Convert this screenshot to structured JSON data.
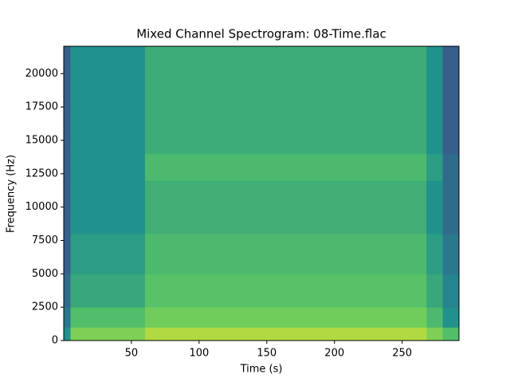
{
  "chart_data": {
    "type": "spectrogram",
    "title": "Mixed Channel Spectrogram: 08-Time.flac",
    "xlabel": "Time (s)",
    "ylabel": "Frequency (Hz)",
    "colormap": "viridis",
    "x_edges": [
      0,
      5,
      60,
      268,
      280,
      292
    ],
    "y_edges": [
      0,
      1000,
      2500,
      5000,
      8000,
      12000,
      14000,
      22050
    ],
    "values": [
      [
        0.5,
        0.4,
        0.35,
        0.3,
        0.3,
        0.3,
        0.3
      ],
      [
        0.8,
        0.7,
        0.6,
        0.55,
        0.5,
        0.5,
        0.5
      ],
      [
        0.88,
        0.78,
        0.72,
        0.68,
        0.63,
        0.68,
        0.62
      ],
      [
        0.8,
        0.68,
        0.6,
        0.55,
        0.5,
        0.55,
        0.5
      ],
      [
        0.7,
        0.5,
        0.45,
        0.4,
        0.35,
        0.35,
        0.3
      ]
    ],
    "xlim": [
      0,
      292
    ],
    "ylim": [
      0,
      22050
    ],
    "xticks": [
      50,
      100,
      150,
      200,
      250
    ],
    "yticks": [
      0,
      2500,
      5000,
      7500,
      10000,
      12500,
      15000,
      17500,
      20000
    ]
  }
}
